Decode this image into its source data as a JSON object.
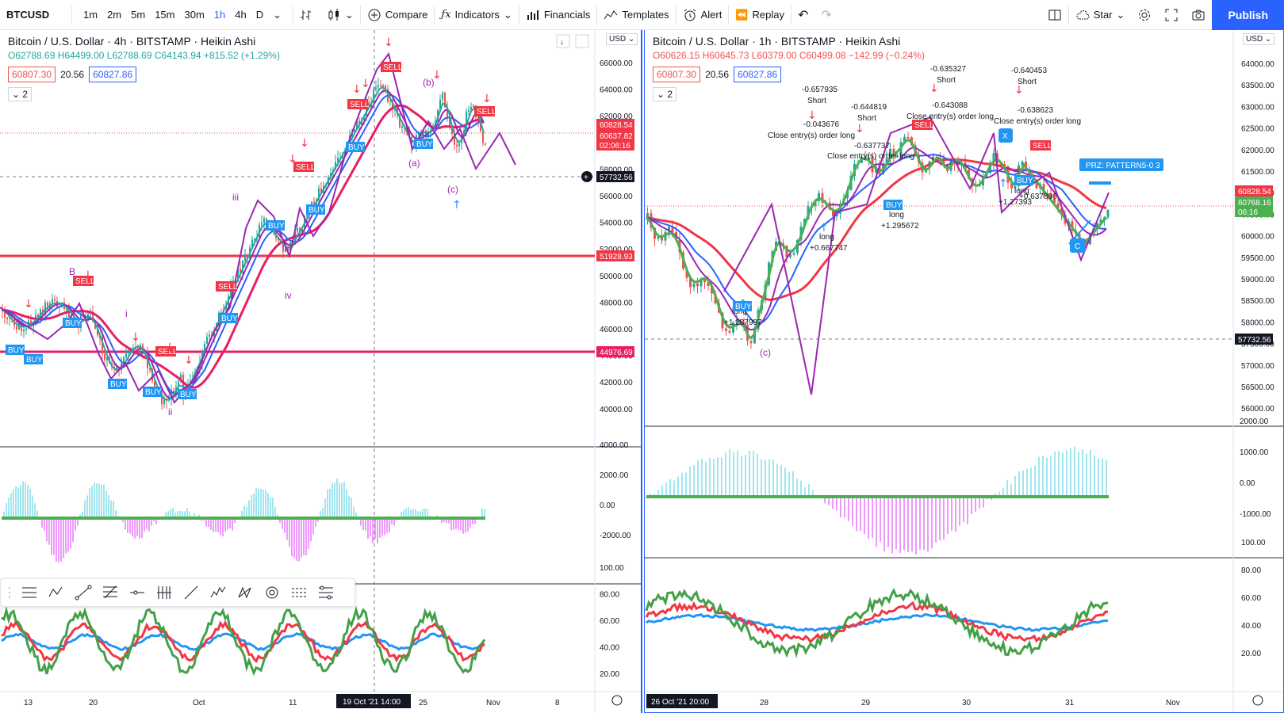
{
  "toolbar": {
    "symbol": "BTCUSD",
    "intervals": [
      "1m",
      "2m",
      "5m",
      "15m",
      "30m",
      "1h",
      "4h",
      "D"
    ],
    "active_interval": "1h",
    "compare": "Compare",
    "indicators": "Indicators",
    "financials": "Financials",
    "templates": "Templates",
    "alert": "Alert",
    "replay": "Replay",
    "layout_name": "Star",
    "publish": "Publish"
  },
  "left": {
    "title": "Bitcoin / U.S. Dollar · 4h · BITSTAMP · Heikin Ashi",
    "ohlc": "O62788.69 H64499.00 L62788.69 C64143.94 +815.52 (+1.29%)",
    "val_red": "60807.30",
    "val_mid": "20.56",
    "val_blue": "60827.86",
    "collapse": "2",
    "currency": "USD",
    "price_ticks": [
      "66000.00",
      "64000.00",
      "62000.00",
      "60000.00",
      "58000.00",
      "56000.00",
      "54000.00",
      "52000.00",
      "50000.00",
      "48000.00",
      "46000.00",
      "44000.00",
      "42000.00",
      "40000.00"
    ],
    "price_tags": {
      "a": "60828.54",
      "b": "60637.82",
      "c": "02:06:16",
      "crosshair": "57732.56",
      "line1": "51928.93",
      "line2": "44976.69"
    },
    "osc_ticks": [
      "4000.00",
      "2000.00",
      "0.00",
      "-2000.00"
    ],
    "rsi_ticks": [
      "100.00",
      "80.00",
      "60.00",
      "40.00",
      "20.00"
    ],
    "time_ticks": [
      "13",
      "20",
      "Oct",
      "11",
      "25",
      "Nov",
      "8"
    ],
    "time_cursor": "19 Oct '21   14:00",
    "waves": [
      "iii",
      "iv",
      "i",
      "ii",
      "(a)",
      "(b)",
      "(c)",
      "B"
    ],
    "signals": [
      "SELL",
      "BUY"
    ]
  },
  "right": {
    "title": "Bitcoin / U.S. Dollar · 1h · BITSTAMP · Heikin Ashi",
    "ohlc": "O60626.15 H60645.73 L60379.00 C60499.08 −142.99 (−0.24%)",
    "val_red": "60807.30",
    "val_mid": "20.56",
    "val_blue": "60827.86",
    "collapse": "2",
    "currency": "USD",
    "price_ticks": [
      "64000.00",
      "63500.00",
      "63000.00",
      "62500.00",
      "62000.00",
      "61500.00",
      "61000.00",
      "60500.00",
      "60000.00",
      "59500.00",
      "59000.00",
      "58500.00",
      "58000.00",
      "57500.00",
      "57000.00",
      "56500.00",
      "56000.00"
    ],
    "price_tags": {
      "a": "60828.54",
      "b": "60768.16",
      "c": "06:16",
      "crosshair": "57732.56"
    },
    "osc_ticks": [
      "2000.00",
      "1000.00",
      "0.00",
      "-1000.00"
    ],
    "rsi_ticks": [
      "100.00",
      "80.00",
      "60.00",
      "40.00",
      "20.00"
    ],
    "time_ticks": [
      "28",
      "29",
      "30",
      "31",
      "Nov"
    ],
    "time_cursor": "26 Oct '21   20:00",
    "annotations": [
      "-0.657935",
      "Short",
      "-0.043676",
      "Close entry(s) order long",
      "-0.644819",
      "Short",
      "-0.637737",
      "Close entry(s) order long",
      "-0.635327",
      "Short",
      "-0.643088",
      "Close entry(s) order long",
      "-0.640453",
      "Short",
      "-0.638623",
      "Close entry(s) order long",
      "long",
      "+0.667747",
      "long",
      "+1.295672",
      "long",
      "+1.287907",
      "long",
      "+1.27393",
      "+0.637896"
    ],
    "prz": "PRZ: PATTERN5-0 3",
    "pattern_points": [
      "X",
      "C"
    ],
    "wave": "(c)"
  }
}
